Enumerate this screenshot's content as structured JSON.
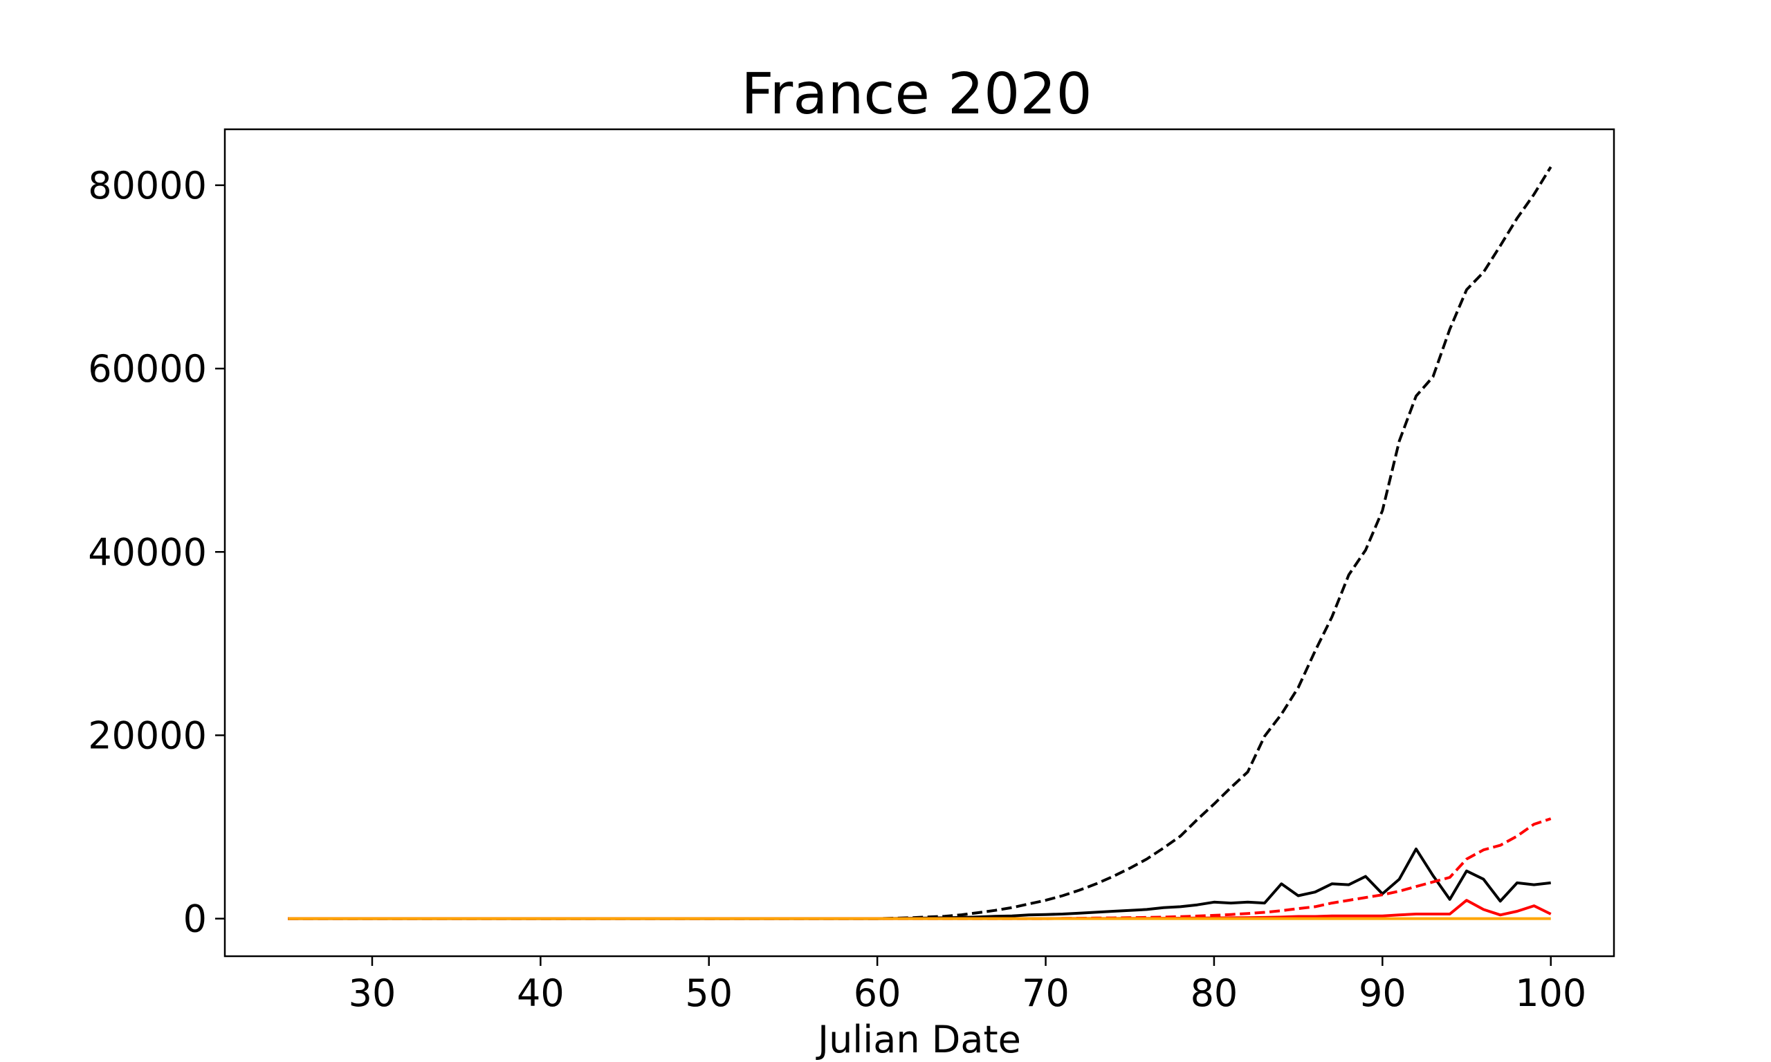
{
  "chart_data": {
    "type": "line",
    "title": "France 2020",
    "xlabel": "Julian Date",
    "ylabel": "",
    "xlim": [
      21.25,
      103.75
    ],
    "ylim": [
      -4100,
      86100
    ],
    "xticks": [
      30,
      40,
      50,
      60,
      70,
      80,
      90,
      100
    ],
    "yticks": [
      0,
      20000,
      40000,
      60000,
      80000
    ],
    "grid": false,
    "legend": "none",
    "x": [
      25,
      26,
      27,
      28,
      29,
      30,
      31,
      32,
      33,
      34,
      35,
      36,
      37,
      38,
      39,
      40,
      41,
      42,
      43,
      44,
      45,
      46,
      47,
      48,
      49,
      50,
      51,
      52,
      53,
      54,
      55,
      56,
      57,
      58,
      59,
      60,
      61,
      62,
      63,
      64,
      65,
      66,
      67,
      68,
      69,
      70,
      71,
      72,
      73,
      74,
      75,
      76,
      77,
      78,
      79,
      80,
      81,
      82,
      83,
      84,
      85,
      86,
      87,
      88,
      89,
      90,
      91,
      92,
      93,
      94,
      95,
      96,
      97,
      98,
      99,
      100
    ],
    "series": [
      {
        "color": "#000000",
        "style": "dashed",
        "values": [
          0,
          0,
          0,
          0,
          0,
          0,
          0,
          0,
          0,
          0,
          0,
          0,
          0,
          0,
          0,
          0,
          0,
          0,
          0,
          0,
          0,
          0,
          0,
          0,
          0,
          0,
          0,
          0,
          0,
          0,
          0,
          0,
          0,
          0,
          0,
          0,
          50,
          100,
          180,
          250,
          420,
          650,
          900,
          1200,
          1600,
          2000,
          2500,
          3100,
          3800,
          4600,
          5500,
          6500,
          7700,
          9000,
          10800,
          12500,
          14300,
          16000,
          19900,
          22300,
          25200,
          29200,
          32900,
          37500,
          40200,
          44500,
          52100,
          57000,
          59100,
          64300,
          68600,
          70500,
          73400,
          76400,
          79000,
          82000
        ]
      },
      {
        "color": "#000000",
        "style": "solid",
        "values": [
          0,
          0,
          0,
          0,
          0,
          0,
          0,
          0,
          0,
          0,
          0,
          0,
          0,
          0,
          0,
          0,
          0,
          0,
          0,
          0,
          0,
          0,
          0,
          0,
          0,
          0,
          0,
          0,
          0,
          0,
          0,
          0,
          0,
          0,
          0,
          0,
          20,
          40,
          60,
          90,
          130,
          180,
          250,
          300,
          400,
          450,
          500,
          600,
          700,
          800,
          900,
          1000,
          1200,
          1300,
          1500,
          1800,
          1700,
          1800,
          1700,
          3800,
          2500,
          2900,
          3800,
          3700,
          4600,
          2700,
          4300,
          7600,
          4700,
          2100,
          5200,
          4300,
          1900,
          3900,
          3700,
          3900
        ]
      },
      {
        "color": "#ff0000",
        "style": "dashed",
        "values": [
          0,
          0,
          0,
          0,
          0,
          0,
          0,
          0,
          0,
          0,
          0,
          0,
          0,
          0,
          0,
          0,
          0,
          0,
          0,
          0,
          0,
          0,
          0,
          0,
          0,
          0,
          0,
          0,
          0,
          0,
          0,
          0,
          0,
          0,
          0,
          0,
          0,
          0,
          0,
          0,
          0,
          0,
          0,
          0,
          0,
          0,
          20,
          40,
          60,
          80,
          100,
          130,
          170,
          220,
          280,
          360,
          450,
          560,
          690,
          860,
          1100,
          1300,
          1700,
          2000,
          2300,
          2600,
          3000,
          3500,
          4000,
          4500,
          6500,
          7500,
          8000,
          9000,
          10300,
          10900
        ]
      },
      {
        "color": "#ff0000",
        "style": "solid",
        "values": [
          0,
          0,
          0,
          0,
          0,
          0,
          0,
          0,
          0,
          0,
          0,
          0,
          0,
          0,
          0,
          0,
          0,
          0,
          0,
          0,
          0,
          0,
          0,
          0,
          0,
          0,
          0,
          0,
          0,
          0,
          0,
          0,
          0,
          0,
          0,
          0,
          0,
          0,
          0,
          0,
          0,
          0,
          0,
          0,
          0,
          0,
          20,
          20,
          20,
          20,
          30,
          30,
          40,
          50,
          60,
          80,
          90,
          110,
          130,
          170,
          240,
          240,
          300,
          300,
          300,
          300,
          400,
          500,
          500,
          500,
          2000,
          1000,
          400,
          800,
          1400,
          500
        ]
      },
      {
        "color": "#ffa500",
        "style": "solid",
        "values": [
          0,
          0,
          0,
          0,
          0,
          0,
          0,
          0,
          0,
          0,
          0,
          0,
          0,
          0,
          0,
          0,
          0,
          0,
          0,
          0,
          0,
          0,
          0,
          0,
          0,
          0,
          0,
          0,
          0,
          0,
          0,
          0,
          0,
          0,
          0,
          0,
          0,
          0,
          0,
          0,
          0,
          0,
          0,
          0,
          0,
          0,
          0,
          0,
          0,
          0,
          0,
          0,
          0,
          0,
          0,
          0,
          0,
          0,
          0,
          0,
          0,
          0,
          0,
          0,
          0,
          0,
          0,
          0,
          0,
          0,
          0,
          0,
          0,
          0,
          0,
          0
        ]
      }
    ]
  }
}
